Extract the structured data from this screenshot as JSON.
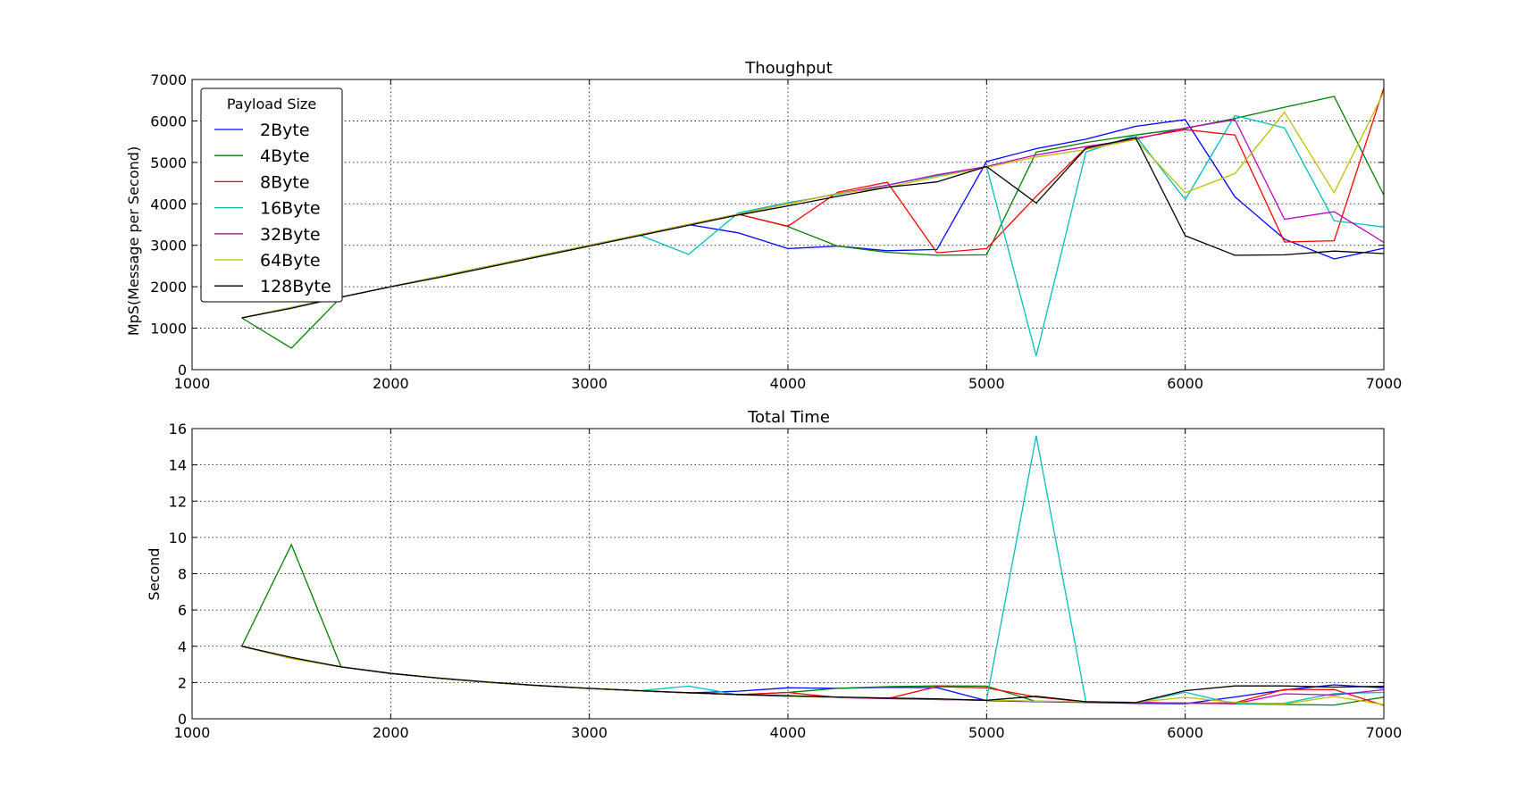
{
  "chart_data": [
    {
      "type": "line",
      "title": "Thoughput",
      "xlabel": "",
      "ylabel": "MpS(Message per Second)",
      "xlim": [
        1000,
        7000
      ],
      "ylim": [
        0,
        7000
      ],
      "xticks": [
        1000,
        2000,
        3000,
        4000,
        5000,
        6000,
        7000
      ],
      "yticks": [
        0,
        1000,
        2000,
        3000,
        4000,
        5000,
        6000,
        7000
      ],
      "grid": true,
      "legend": {
        "title": "Payload Size",
        "position": "upper-left"
      },
      "x": [
        1250,
        1500,
        1750,
        2000,
        2250,
        2500,
        2750,
        3000,
        3250,
        3500,
        3750,
        4000,
        4250,
        4500,
        4750,
        5000,
        5250,
        5500,
        5750,
        6000,
        6250,
        6500,
        6750,
        7000
      ],
      "series": [
        {
          "name": "2Byte",
          "color": "#0000ff",
          "values": [
            1250,
            1500,
            1750,
            2000,
            2250,
            2500,
            2750,
            3000,
            3250,
            3500,
            3300,
            2920,
            2980,
            2870,
            2900,
            5020,
            5330,
            5560,
            5870,
            6030,
            4170,
            3150,
            2670,
            2930
          ]
        },
        {
          "name": "4Byte",
          "color": "#008000",
          "values": [
            1250,
            520,
            1750,
            2000,
            2250,
            2500,
            2750,
            3000,
            3250,
            3500,
            3750,
            3450,
            2980,
            2830,
            2760,
            2770,
            5250,
            5480,
            5660,
            5820,
            6060,
            6330,
            6590,
            4210
          ]
        },
        {
          "name": "8Byte",
          "color": "#ff0000",
          "values": [
            1250,
            1500,
            1750,
            2000,
            2250,
            2500,
            2750,
            3000,
            3250,
            3500,
            3750,
            3460,
            4280,
            4520,
            2820,
            2920,
            4180,
            5350,
            5580,
            5790,
            5660,
            3080,
            3110,
            6800
          ]
        },
        {
          "name": "16Byte",
          "color": "#00bfbf",
          "values": [
            1250,
            1500,
            1750,
            2000,
            2250,
            2500,
            2750,
            3000,
            3250,
            2780,
            3780,
            4030,
            4230,
            4450,
            4680,
            4900,
            330,
            5250,
            5650,
            4100,
            6130,
            5830,
            3590,
            3440
          ]
        },
        {
          "name": "32Byte",
          "color": "#bf00bf",
          "values": [
            1250,
            1500,
            1750,
            2000,
            2250,
            2500,
            2750,
            3000,
            3250,
            3500,
            3750,
            4000,
            4250,
            4450,
            4700,
            4900,
            5180,
            5380,
            5560,
            5830,
            6030,
            3630,
            3810,
            3070
          ]
        },
        {
          "name": "64Byte",
          "color": "#bfbf00",
          "values": [
            1250,
            1500,
            1750,
            2000,
            2250,
            2500,
            2750,
            3000,
            3250,
            3500,
            3750,
            4000,
            4250,
            4400,
            4650,
            4880,
            5130,
            5310,
            5550,
            4270,
            4730,
            6210,
            4270,
            6700
          ]
        },
        {
          "name": "128Byte",
          "color": "#000000",
          "values": [
            1250,
            1480,
            1750,
            2000,
            2230,
            2480,
            2730,
            2980,
            3230,
            3480,
            3730,
            3950,
            4180,
            4400,
            4530,
            4900,
            4020,
            5340,
            5600,
            3230,
            2760,
            2770,
            2860,
            2800
          ]
        }
      ]
    },
    {
      "type": "line",
      "title": "Total Time",
      "xlabel": "",
      "ylabel": "Second",
      "xlim": [
        1000,
        7000
      ],
      "ylim": [
        0,
        16
      ],
      "xticks": [
        1000,
        2000,
        3000,
        4000,
        5000,
        6000,
        7000
      ],
      "yticks": [
        0,
        2,
        4,
        6,
        8,
        10,
        12,
        14,
        16
      ],
      "grid": true,
      "x": [
        1250,
        1500,
        1750,
        2000,
        2250,
        2500,
        2750,
        3000,
        3250,
        3500,
        3750,
        4000,
        4250,
        4500,
        4750,
        5000,
        5250,
        5500,
        5750,
        6000,
        6250,
        6500,
        6750,
        7000
      ],
      "series": [
        {
          "name": "2Byte",
          "color": "#0000ff",
          "values": [
            4.0,
            3.33,
            2.86,
            2.5,
            2.22,
            2.0,
            1.82,
            1.67,
            1.54,
            1.43,
            1.52,
            1.71,
            1.68,
            1.74,
            1.72,
            1.0,
            0.94,
            0.9,
            0.85,
            0.83,
            1.2,
            1.59,
            1.87,
            1.71
          ]
        },
        {
          "name": "4Byte",
          "color": "#008000",
          "values": [
            4.0,
            9.6,
            2.86,
            2.5,
            2.22,
            2.0,
            1.82,
            1.67,
            1.54,
            1.43,
            1.33,
            1.45,
            1.68,
            1.77,
            1.81,
            1.8,
            0.95,
            0.91,
            0.88,
            0.86,
            0.83,
            0.79,
            0.76,
            1.19
          ]
        },
        {
          "name": "8Byte",
          "color": "#ff0000",
          "values": [
            4.0,
            3.33,
            2.86,
            2.5,
            2.22,
            2.0,
            1.82,
            1.67,
            1.54,
            1.43,
            1.33,
            1.45,
            1.17,
            1.11,
            1.77,
            1.71,
            1.2,
            0.93,
            0.9,
            0.86,
            0.88,
            1.62,
            1.61,
            0.74
          ]
        },
        {
          "name": "16Byte",
          "color": "#00bfbf",
          "values": [
            4.0,
            3.33,
            2.86,
            2.5,
            2.22,
            2.0,
            1.82,
            1.67,
            1.54,
            1.8,
            1.32,
            1.24,
            1.18,
            1.12,
            1.07,
            1.02,
            15.6,
            0.95,
            0.88,
            1.46,
            0.82,
            0.86,
            1.39,
            1.45
          ]
        },
        {
          "name": "32Byte",
          "color": "#bf00bf",
          "values": [
            4.0,
            3.33,
            2.86,
            2.5,
            2.22,
            2.0,
            1.82,
            1.67,
            1.54,
            1.43,
            1.33,
            1.25,
            1.18,
            1.12,
            1.06,
            1.02,
            0.97,
            0.93,
            0.9,
            0.86,
            0.83,
            1.38,
            1.31,
            1.6
          ]
        },
        {
          "name": "64Byte",
          "color": "#bfbf00",
          "values": [
            4.0,
            3.33,
            2.86,
            2.5,
            2.22,
            2.0,
            1.82,
            1.67,
            1.54,
            1.43,
            1.33,
            1.25,
            1.18,
            1.14,
            1.08,
            1.02,
            0.97,
            0.94,
            0.9,
            1.18,
            0.9,
            0.81,
            1.23,
            0.78
          ]
        },
        {
          "name": "128Byte",
          "color": "#000000",
          "values": [
            4.0,
            3.38,
            2.86,
            2.5,
            2.24,
            2.02,
            1.83,
            1.68,
            1.55,
            1.44,
            1.34,
            1.27,
            1.2,
            1.14,
            1.1,
            1.02,
            1.24,
            0.94,
            0.89,
            1.55,
            1.81,
            1.81,
            1.75,
            1.79
          ]
        }
      ]
    }
  ]
}
